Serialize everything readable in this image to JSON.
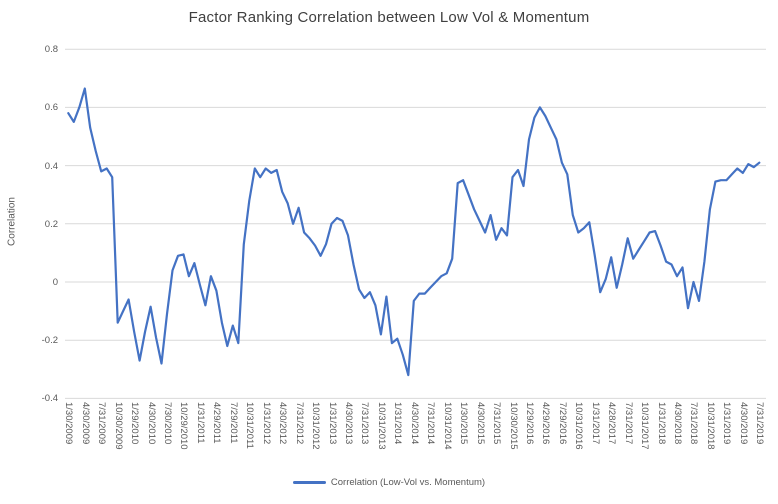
{
  "chart": {
    "title": "Factor Ranking Correlation between Low Vol & Momentum",
    "y_axis_title": "Correlation",
    "legend_label": "Correlation (Low-Vol vs. Momentum)"
  },
  "chart_data": {
    "type": "line",
    "title": "Factor Ranking Correlation between Low Vol & Momentum",
    "xlabel": "",
    "ylabel": "Correlation",
    "ylim": [
      -0.4,
      0.8
    ],
    "grid": true,
    "legend_position": "bottom",
    "y_ticks": [
      0.8,
      0.6,
      0.4,
      0.2,
      0,
      -0.2,
      -0.4
    ],
    "y_tick_labels": [
      "0.8",
      "0.6",
      "0.4",
      "0.2",
      "0",
      "-0.2",
      "-0.4"
    ],
    "x_tick_every_n_points": 3,
    "x_tick_labels": [
      "1/30/2009",
      "4/30/2009",
      "7/31/2009",
      "10/30/2009",
      "1/29/2010",
      "4/30/2010",
      "7/30/2010",
      "10/29/2010",
      "1/31/2011",
      "4/29/2011",
      "7/29/2011",
      "10/31/2011",
      "1/31/2012",
      "4/30/2012",
      "7/31/2012",
      "10/31/2012",
      "1/31/2013",
      "4/30/2013",
      "7/31/2013",
      "10/31/2013",
      "1/31/2014",
      "4/30/2014",
      "7/31/2014",
      "10/31/2014",
      "1/30/2015",
      "4/30/2015",
      "7/31/2015",
      "10/30/2015",
      "1/29/2016",
      "4/29/2016",
      "7/29/2016",
      "10/31/2016",
      "1/31/2017",
      "4/28/2017",
      "7/31/2017",
      "10/31/2017",
      "1/31/2018",
      "4/30/2018",
      "7/31/2018",
      "10/31/2018",
      "1/31/2019",
      "4/30/2019",
      "7/31/2019"
    ],
    "series": [
      {
        "name": "Correlation (Low-Vol vs. Momentum)",
        "color": "#4472C4",
        "frequency": "monthly",
        "start": "1/2009",
        "end": "7/2019",
        "values": [
          0.58,
          0.55,
          0.6,
          0.665,
          0.53,
          0.45,
          0.38,
          0.39,
          0.36,
          -0.14,
          -0.1,
          -0.06,
          -0.17,
          -0.27,
          -0.17,
          -0.085,
          -0.19,
          -0.28,
          -0.11,
          0.04,
          0.09,
          0.095,
          0.02,
          0.065,
          -0.01,
          -0.08,
          0.02,
          -0.03,
          -0.14,
          -0.22,
          -0.15,
          -0.21,
          0.13,
          0.28,
          0.39,
          0.36,
          0.39,
          0.375,
          0.385,
          0.31,
          0.27,
          0.2,
          0.255,
          0.17,
          0.15,
          0.125,
          0.09,
          0.13,
          0.2,
          0.22,
          0.21,
          0.16,
          0.06,
          -0.025,
          -0.055,
          -0.035,
          -0.08,
          -0.18,
          -0.05,
          -0.21,
          -0.195,
          -0.25,
          -0.32,
          -0.065,
          -0.04,
          -0.04,
          -0.02,
          0.0,
          0.02,
          0.03,
          0.08,
          0.34,
          0.35,
          0.3,
          0.25,
          0.21,
          0.17,
          0.23,
          0.145,
          0.185,
          0.16,
          0.36,
          0.385,
          0.33,
          0.49,
          0.565,
          0.6,
          0.57,
          0.53,
          0.49,
          0.41,
          0.37,
          0.23,
          0.17,
          0.185,
          0.205,
          0.09,
          -0.035,
          0.01,
          0.085,
          -0.02,
          0.06,
          0.15,
          0.08,
          0.11,
          0.14,
          0.17,
          0.175,
          0.125,
          0.07,
          0.06,
          0.02,
          0.05,
          -0.09,
          0.0,
          -0.065,
          0.07,
          0.25,
          0.345,
          0.35,
          0.35,
          0.37,
          0.39,
          0.375,
          0.405,
          0.395,
          0.41
        ]
      }
    ],
    "colors": {
      "line": "#4472C4",
      "gridline": "#D9D9D9",
      "axis_line": "#D9D9D9",
      "axis_text": "#595959",
      "title_text": "#404040",
      "background": "#FFFFFF"
    }
  }
}
